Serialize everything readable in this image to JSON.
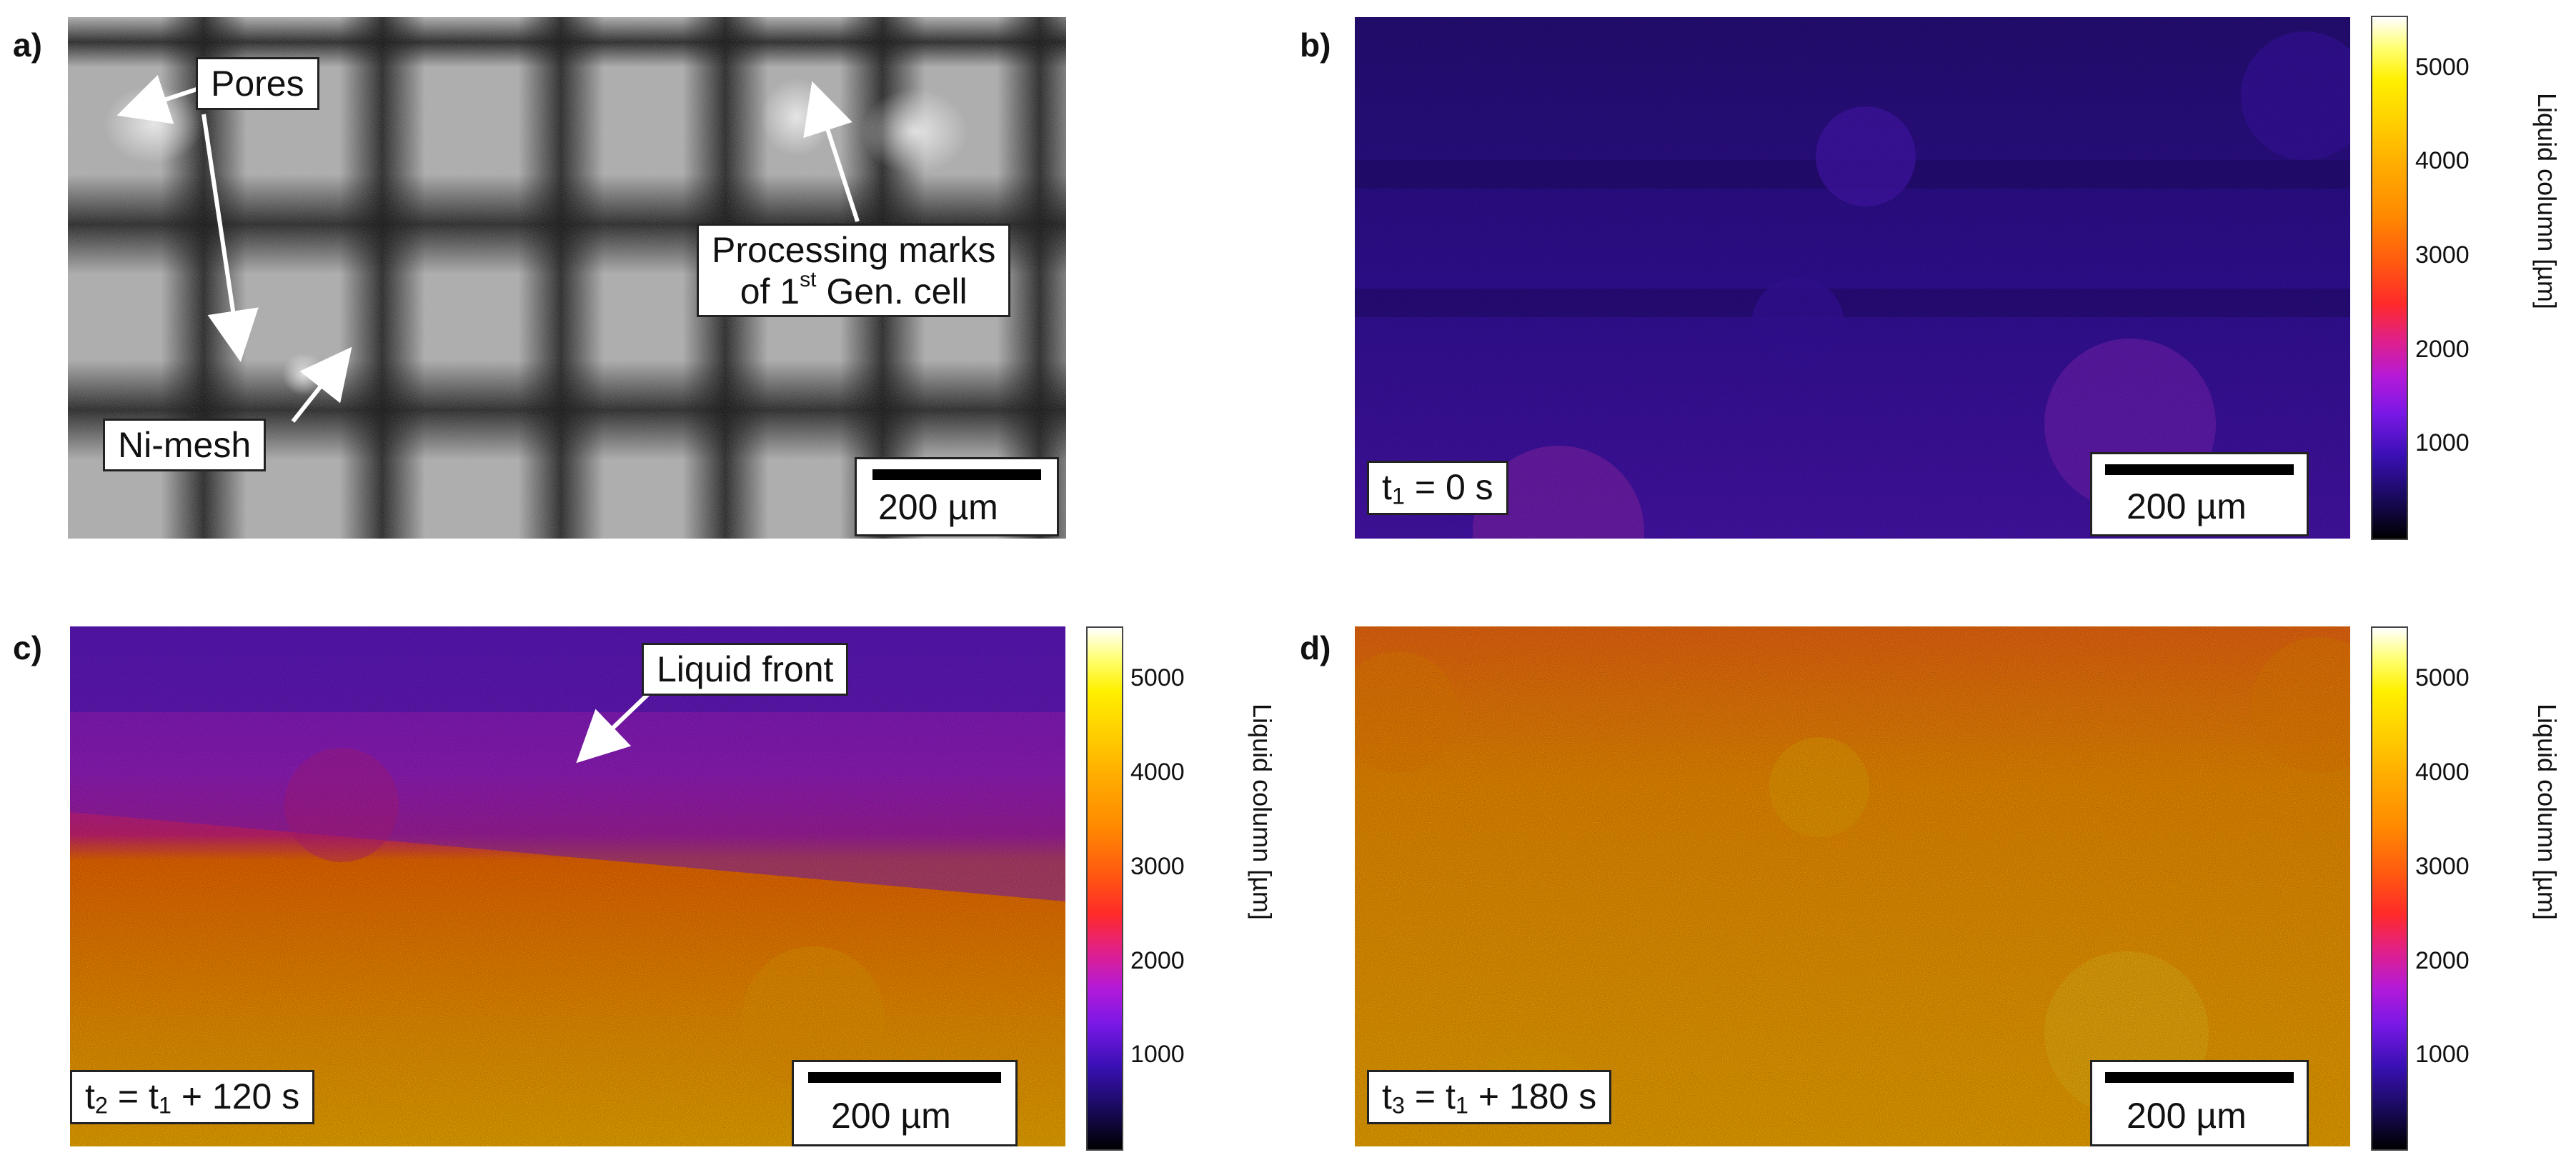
{
  "panels": {
    "a": {
      "letter": "a)",
      "labels": {
        "pores": "Pores",
        "processing_line1": "Processing marks",
        "processing_line2_pre": "of 1",
        "processing_sup": "st",
        "processing_line2_post": " Gen. cell",
        "ni_mesh": "Ni-mesh"
      },
      "scale": "200 µm"
    },
    "b": {
      "letter": "b)",
      "time_label": "t",
      "time_sub": "1",
      "time_rest": " = 0 s",
      "scale": "200 µm"
    },
    "c": {
      "letter": "c)",
      "annotation": "Liquid front",
      "time_label": "t",
      "time_sub": "2",
      "time_mid": " = t",
      "time_sub2": "1",
      "time_rest": " + 120 s",
      "scale": "200 µm"
    },
    "d": {
      "letter": "d)",
      "time_label": "t",
      "time_sub": "3",
      "time_mid": " = t",
      "time_sub2": "1",
      "time_rest": " + 180 s",
      "scale": "200 µm"
    }
  },
  "colorbar": {
    "label": "Liquid column [µm]",
    "ticks": [
      "5000",
      "4000",
      "3000",
      "2000",
      "1000"
    ]
  }
}
